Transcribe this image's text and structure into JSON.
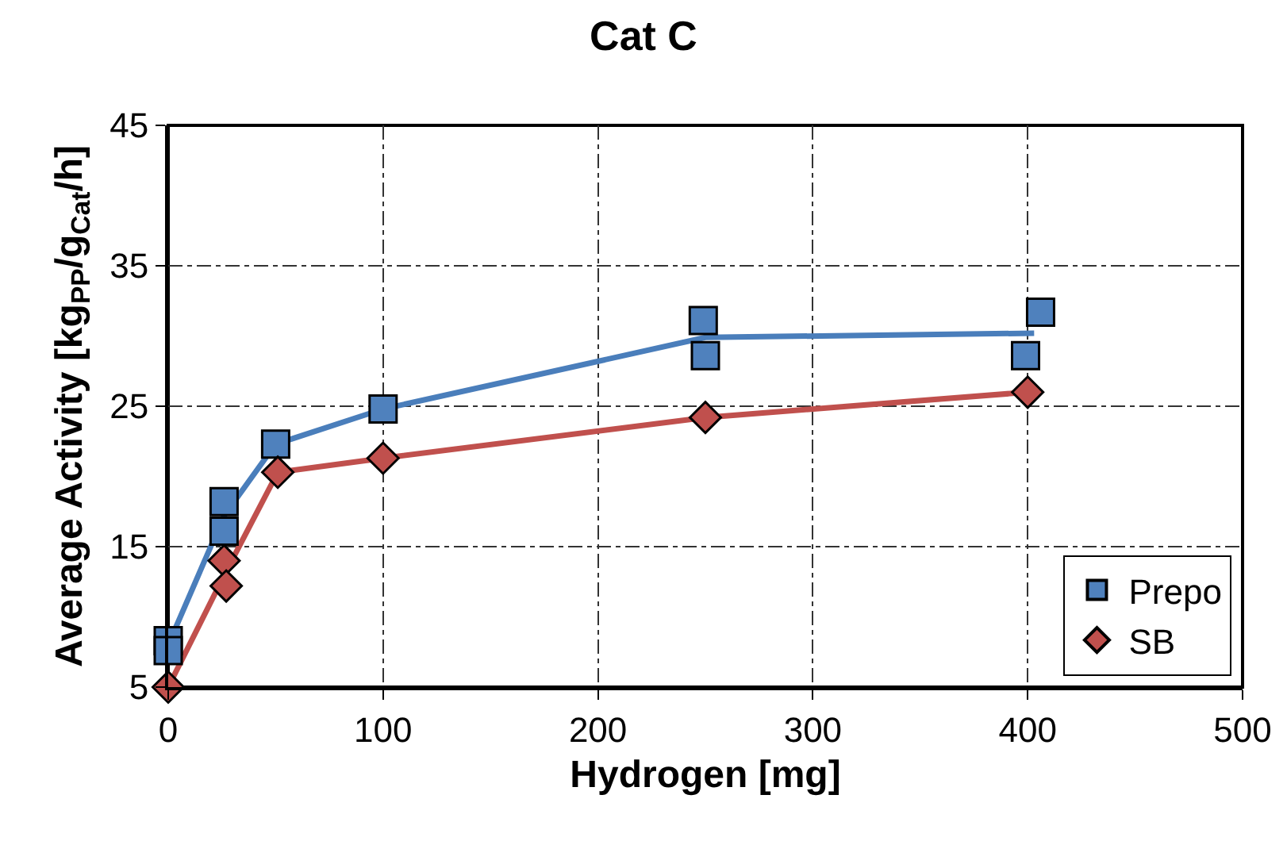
{
  "chart_data": {
    "type": "scatter",
    "title": "Cat C",
    "xlabel": "Hydrogen [mg]",
    "ylabel": "Average Activity [kg$_{PP}$/g$_{Cat}$/h]",
    "xlim": [
      0,
      500
    ],
    "xticks": [
      0,
      100,
      200,
      300,
      400,
      500
    ],
    "ylim": [
      5,
      45
    ],
    "yticks": [
      5,
      15,
      25,
      35,
      45
    ],
    "grid": true,
    "legend": "bottom right",
    "series": [
      {
        "type": "line",
        "color": "#4a7ebb",
        "marker": "none",
        "x": [
          0,
          26,
          50,
          100,
          250,
          403
        ],
        "values": [
          8.0,
          17.2,
          22.3,
          24.8,
          29.9,
          30.2
        ]
      },
      {
        "type": "line",
        "color": "#c0504d",
        "marker": "none",
        "x": [
          0,
          26.5,
          51,
          100,
          250,
          400
        ],
        "values": [
          5.0,
          13.1,
          20.3,
          21.3,
          24.2,
          26.0
        ]
      },
      {
        "name": "Prepo",
        "color": "#4f81bd",
        "marker": "square",
        "x": [
          0,
          0,
          26,
          26,
          50,
          100,
          249,
          250,
          399,
          406
        ],
        "values": [
          8.3,
          7.6,
          18.2,
          16.1,
          22.3,
          24.8,
          31.1,
          28.6,
          28.6,
          31.7
        ]
      },
      {
        "name": "SB",
        "color": "#c0504d",
        "marker": "diamond",
        "x": [
          0,
          26,
          27,
          51,
          100,
          250,
          400
        ],
        "values": [
          5.0,
          14.0,
          12.2,
          20.3,
          21.3,
          24.2,
          26.0
        ]
      }
    ]
  }
}
